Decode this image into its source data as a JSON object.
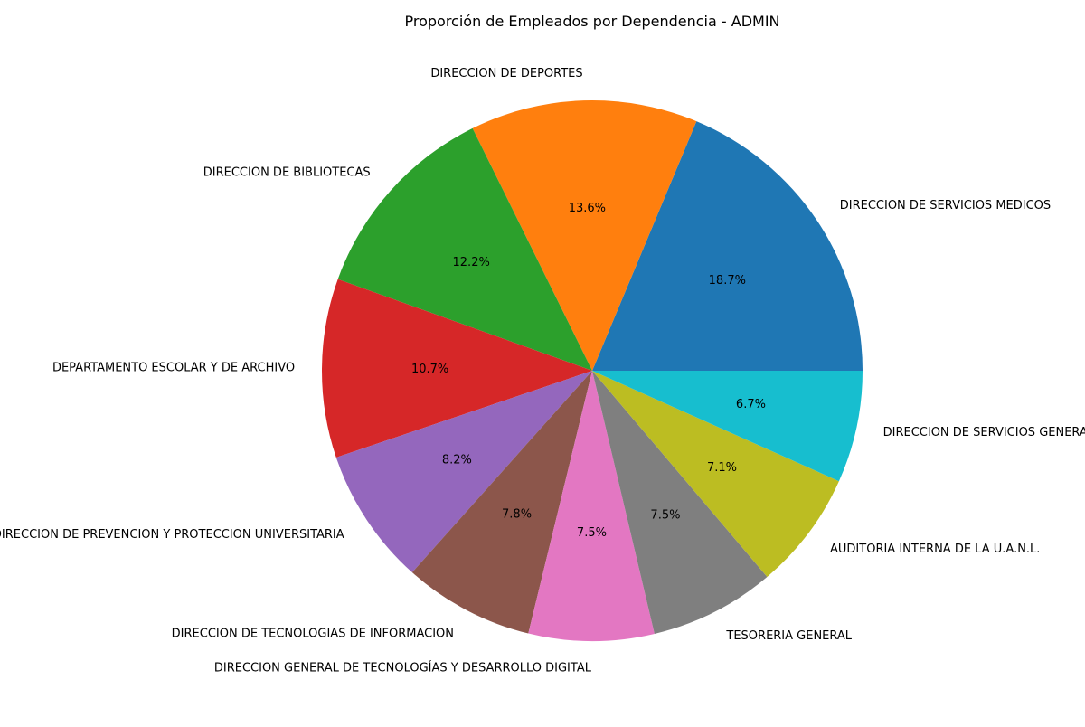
{
  "chart_data": {
    "type": "pie",
    "title": "Proporción de Empleados por Dependencia - ADMIN",
    "categories": [
      "DIRECCION DE SERVICIOS MEDICOS",
      "DIRECCION DE DEPORTES",
      "DIRECCION DE BIBLIOTECAS",
      "DEPARTAMENTO ESCOLAR Y DE ARCHIVO",
      "DIRECCION DE PREVENCION Y PROTECCION UNIVERSITARIA",
      "DIRECCION DE TECNOLOGIAS DE INFORMACION",
      "DIRECCION GENERAL DE TECNOLOGÍAS Y DESARROLLO DIGITAL",
      "TESORERIA GENERAL",
      "AUDITORIA INTERNA DE LA U.A.N.L.",
      "DIRECCION DE SERVICIOS GENERALES"
    ],
    "values": [
      18.7,
      13.6,
      12.2,
      10.7,
      8.2,
      7.8,
      7.5,
      7.5,
      7.1,
      6.7
    ],
    "value_labels": [
      "18.7%",
      "13.6%",
      "12.2%",
      "10.7%",
      "8.2%",
      "7.8%",
      "7.5%",
      "7.5%",
      "7.1%",
      "6.7%"
    ],
    "colors": [
      "#1f77b4",
      "#ff7f0e",
      "#2ca02c",
      "#d62728",
      "#9467bd",
      "#8c564b",
      "#e377c2",
      "#7f7f7f",
      "#bcbd22",
      "#17becf"
    ],
    "start_angle_deg": 0,
    "direction": "counterclockwise",
    "legend": "none"
  }
}
